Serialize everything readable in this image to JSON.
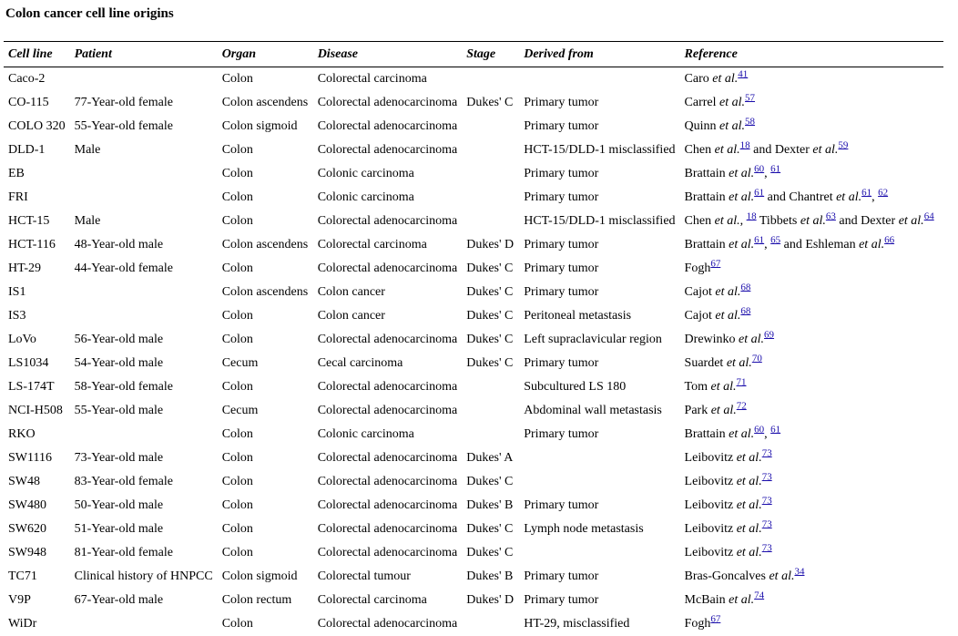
{
  "title": "Colon cancer cell line origins",
  "headers": [
    "Cell line",
    "Patient",
    "Organ",
    "Disease",
    "Stage",
    "Derived from",
    "Reference"
  ],
  "rows": [
    {
      "cell": "Caco-2",
      "patient": "",
      "organ": "Colon",
      "disease": "Colorectal carcinoma",
      "stage": "",
      "derived": "",
      "ref": [
        {
          "a": "Caro",
          "e": "et al.",
          "n": [
            "41"
          ]
        }
      ]
    },
    {
      "cell": "CO-115",
      "patient": "77-Year-old female",
      "organ": "Colon ascendens",
      "disease": "Colorectal adenocarcinoma",
      "stage": "Dukes' C",
      "derived": "Primary tumor",
      "ref": [
        {
          "a": "Carrel",
          "e": "et al.",
          "n": [
            "57"
          ]
        }
      ]
    },
    {
      "cell": "COLO 320",
      "patient": "55-Year-old female",
      "organ": "Colon sigmoid",
      "disease": "Colorectal adenocarcinoma",
      "stage": "",
      "derived": "Primary tumor",
      "ref": [
        {
          "a": "Quinn",
          "e": "et al.",
          "n": [
            "58"
          ]
        }
      ]
    },
    {
      "cell": "DLD-1",
      "patient": "Male",
      "organ": "Colon",
      "disease": "Colorectal adenocarcinoma",
      "stage": "",
      "derived": "HCT-15/DLD-1 misclassified",
      "ref": [
        {
          "a": "Chen",
          "e": "et al.",
          "n": [
            "18"
          ],
          "after": " and "
        },
        {
          "a": "Dexter",
          "e": "et al.",
          "n": [
            "59"
          ]
        }
      ]
    },
    {
      "cell": "EB",
      "patient": "",
      "organ": "Colon",
      "disease": "Colonic carcinoma",
      "stage": "",
      "derived": "Primary tumor",
      "ref": [
        {
          "a": "Brattain",
          "e": "et al.",
          "n": [
            "60",
            "61"
          ]
        }
      ]
    },
    {
      "cell": "FRI",
      "patient": "",
      "organ": "Colon",
      "disease": "Colonic carcinoma",
      "stage": "",
      "derived": "Primary tumor",
      "ref": [
        {
          "a": "Brattain",
          "e": "et al.",
          "n": [
            "61"
          ],
          "after": " and "
        },
        {
          "a": "Chantret",
          "e": "et al.",
          "n": [
            "61",
            "62"
          ]
        }
      ]
    },
    {
      "cell": "HCT-15",
      "patient": "Male",
      "organ": "Colon",
      "disease": "Colorectal adenocarcinoma",
      "stage": "",
      "derived": "HCT-15/DLD-1 misclassified",
      "ref": [
        {
          "a": "Chen",
          "e": "et al.",
          "n": [
            "18"
          ],
          "pre": ", ",
          "after": " "
        },
        {
          "a": "Tibbets",
          "e": "et al.",
          "n": [
            "63"
          ],
          "after": " and "
        },
        {
          "a": "Dexter",
          "e": "et al.",
          "n": [
            "64"
          ]
        }
      ]
    },
    {
      "cell": "HCT-116",
      "patient": "48-Year-old male",
      "organ": "Colon ascendens",
      "disease": "Colorectal carcinoma",
      "stage": "Dukes' D",
      "derived": "Primary tumor",
      "ref": [
        {
          "a": "Brattain",
          "e": "et al.",
          "n": [
            "61",
            "65"
          ],
          "after": " and "
        },
        {
          "a": "Eshleman",
          "e": "et al.",
          "n": [
            "66"
          ]
        }
      ]
    },
    {
      "cell": "HT-29",
      "patient": "44-Year-old female",
      "organ": "Colon",
      "disease": "Colorectal adenocarcinoma",
      "stage": "Dukes' C",
      "derived": "Primary tumor",
      "ref": [
        {
          "a": "Fogh",
          "e": "",
          "n": [
            "67"
          ]
        }
      ]
    },
    {
      "cell": "IS1",
      "patient": "",
      "organ": "Colon ascendens",
      "disease": "Colon cancer",
      "stage": "Dukes' C",
      "derived": "Primary tumor",
      "ref": [
        {
          "a": "Cajot",
          "e": "et al.",
          "n": [
            "68"
          ]
        }
      ]
    },
    {
      "cell": "IS3",
      "patient": "",
      "organ": "Colon",
      "disease": "Colon cancer",
      "stage": "Dukes' C",
      "derived": "Peritoneal metastasis",
      "ref": [
        {
          "a": "Cajot",
          "e": "et al.",
          "n": [
            "68"
          ]
        }
      ]
    },
    {
      "cell": "LoVo",
      "patient": "56-Year-old male",
      "organ": "Colon",
      "disease": "Colorectal adenocarcinoma",
      "stage": "Dukes' C",
      "derived": "Left supraclavicular region",
      "ref": [
        {
          "a": "Drewinko",
          "e": "et al.",
          "n": [
            "69"
          ]
        }
      ]
    },
    {
      "cell": "LS1034",
      "patient": "54-Year-old male",
      "organ": "Cecum",
      "disease": "Cecal carcinoma",
      "stage": "Dukes' C",
      "derived": "Primary tumor",
      "ref": [
        {
          "a": "Suardet",
          "e": "et al.",
          "n": [
            "70"
          ]
        }
      ]
    },
    {
      "cell": "LS-174T",
      "patient": "58-Year-old female",
      "organ": "Colon",
      "disease": "Colorectal adenocarcinoma",
      "stage": "",
      "derived": "Subcultured LS 180",
      "ref": [
        {
          "a": "Tom",
          "e": "et al.",
          "n": [
            "71"
          ]
        }
      ]
    },
    {
      "cell": "NCI-H508",
      "patient": "55-Year-old male",
      "organ": "Cecum",
      "disease": "Colorectal adenocarcinoma",
      "stage": "",
      "derived": "Abdominal wall metastasis",
      "ref": [
        {
          "a": "Park",
          "e": "et al.",
          "n": [
            "72"
          ]
        }
      ]
    },
    {
      "cell": "RKO",
      "patient": "",
      "organ": "Colon",
      "disease": "Colonic carcinoma",
      "stage": "",
      "derived": "Primary tumor",
      "ref": [
        {
          "a": "Brattain",
          "e": "et al.",
          "n": [
            "60",
            "61"
          ]
        }
      ]
    },
    {
      "cell": "SW1116",
      "patient": "73-Year-old male",
      "organ": "Colon",
      "disease": "Colorectal adenocarcinoma",
      "stage": "Dukes' A",
      "derived": "",
      "ref": [
        {
          "a": "Leibovitz",
          "e": "et al.",
          "n": [
            "73"
          ]
        }
      ]
    },
    {
      "cell": "SW48",
      "patient": "83-Year-old female",
      "organ": "Colon",
      "disease": "Colorectal adenocarcinoma",
      "stage": "Dukes' C",
      "derived": "",
      "ref": [
        {
          "a": "Leibovitz",
          "e": "et al.",
          "n": [
            "73"
          ]
        }
      ]
    },
    {
      "cell": "SW480",
      "patient": "50-Year-old male",
      "organ": "Colon",
      "disease": "Colorectal adenocarcinoma",
      "stage": "Dukes' B",
      "derived": "Primary tumor",
      "ref": [
        {
          "a": "Leibovitz",
          "e": "et al.",
          "n": [
            "73"
          ]
        }
      ]
    },
    {
      "cell": "SW620",
      "patient": "51-Year-old male",
      "organ": "Colon",
      "disease": "Colorectal adenocarcinoma",
      "stage": "Dukes' C",
      "derived": "Lymph node metastasis",
      "ref": [
        {
          "a": "Leibovitz",
          "e": "et al.",
          "n": [
            "73"
          ]
        }
      ]
    },
    {
      "cell": "SW948",
      "patient": "81-Year-old female",
      "organ": "Colon",
      "disease": "Colorectal adenocarcinoma",
      "stage": "Dukes' C",
      "derived": "",
      "ref": [
        {
          "a": "Leibovitz",
          "e": "et al.",
          "n": [
            "73"
          ]
        }
      ]
    },
    {
      "cell": "TC71",
      "patient": "Clinical history of HNPCC",
      "organ": "Colon sigmoid",
      "disease": "Colorectal tumour",
      "stage": "Dukes' B",
      "derived": "Primary tumor",
      "ref": [
        {
          "a": "Bras-Goncalves",
          "e": "et al.",
          "n": [
            "34"
          ]
        }
      ]
    },
    {
      "cell": "V9P",
      "patient": "67-Year-old male",
      "organ": "Colon rectum",
      "disease": "Colorectal carcinoma",
      "stage": "Dukes' D",
      "derived": "Primary tumor",
      "ref": [
        {
          "a": "McBain",
          "e": "et al.",
          "n": [
            "74"
          ]
        }
      ]
    },
    {
      "cell": "WiDr",
      "patient": "",
      "organ": "Colon",
      "disease": "Colorectal adenocarcinoma",
      "stage": "",
      "derived": "HT-29, misclassified",
      "ref": [
        {
          "a": "Fogh",
          "e": "",
          "n": [
            "67"
          ]
        }
      ]
    }
  ]
}
